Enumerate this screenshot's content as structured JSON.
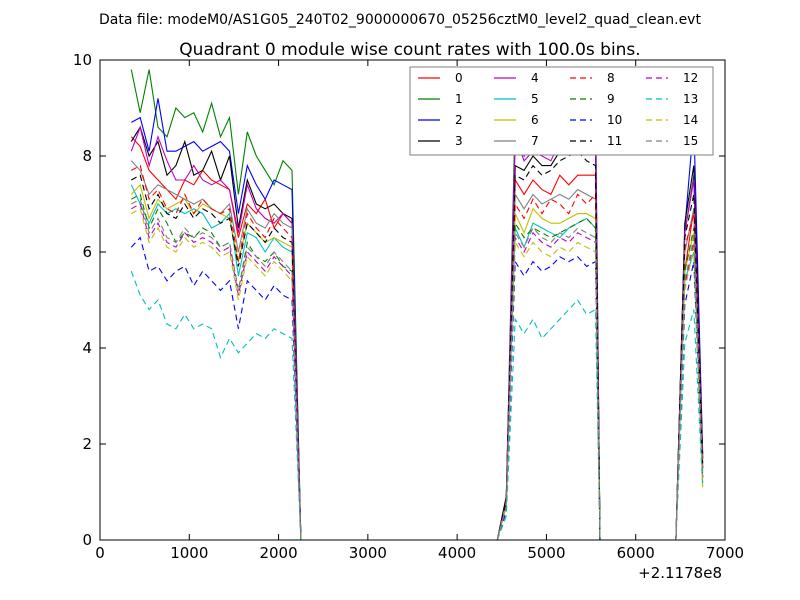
{
  "chart_data": {
    "type": "line",
    "suptitle": "Data file: modeM0/AS1G05_240T02_9000000670_05256cztM0_level2_quad_clean.evt",
    "title": "Quadrant 0 module wise count rates with 100.0s bins.",
    "xlabel": "",
    "ylabel": "",
    "x_offset_label": "+2.1178e8",
    "xlim": [
      0,
      7000
    ],
    "ylim": [
      0,
      10
    ],
    "xticks": [
      "0",
      "1000",
      "2000",
      "3000",
      "4000",
      "5000",
      "6000",
      "7000"
    ],
    "yticks": [
      "0",
      "2",
      "4",
      "6",
      "8",
      "10"
    ],
    "grid": false,
    "legend": {
      "placement": "top-right",
      "columns": 4
    },
    "segments": [
      {
        "start": 350,
        "step": 100,
        "count": 21,
        "tail_x": [
          2410,
          2460
        ]
      },
      {
        "start": 4450,
        "step": 100,
        "count": 12,
        "tail_x": [
          5600,
          5660
        ]
      },
      {
        "start": 6450,
        "step": 100,
        "count": 3,
        "tail_x": [
          6750
        ]
      }
    ],
    "series": [
      {
        "name": "0",
        "color": "#ff0000",
        "dash": "solid",
        "values": [
          [
            8.4,
            8.2,
            7.7,
            7.5,
            7.3,
            7.1,
            7.5,
            7.4,
            7.7,
            7.5,
            7.4,
            7.3,
            6.3,
            7.0,
            6.8,
            7.1,
            6.5,
            6.8,
            6.6,
            0.0,
            0.0
          ],
          [
            0.0,
            0.8,
            7.5,
            7.2,
            7.5,
            7.3,
            7.2,
            7.6,
            7.4,
            7.6,
            7.6,
            7.6,
            0.0,
            0.0
          ],
          [
            0.0,
            5.6,
            6.9,
            1.5,
            0.0
          ]
        ]
      },
      {
        "name": "1",
        "color": "#008000",
        "dash": "solid",
        "values": [
          [
            9.8,
            8.9,
            9.8,
            8.6,
            8.4,
            9.0,
            8.8,
            8.9,
            8.5,
            9.1,
            8.4,
            8.8,
            7.2,
            8.5,
            8.0,
            7.7,
            7.4,
            7.9,
            7.7,
            0.0,
            0.0
          ],
          [
            0.0,
            0.9,
            8.9,
            8.3,
            8.8,
            8.5,
            8.7,
            8.8,
            9.0,
            9.1,
            9.1,
            9.2,
            0.0,
            0.0
          ],
          [
            0.0,
            6.4,
            7.6,
            1.7,
            0.0
          ]
        ]
      },
      {
        "name": "2",
        "color": "#0000ff",
        "dash": "solid",
        "values": [
          [
            8.7,
            8.8,
            8.1,
            9.2,
            8.1,
            8.1,
            8.2,
            8.3,
            8.1,
            8.2,
            8.3,
            8.1,
            6.8,
            7.8,
            7.4,
            7.1,
            7.5,
            7.4,
            7.3,
            0.0,
            0.0
          ],
          [
            0.0,
            0.9,
            8.4,
            8.0,
            8.6,
            8.3,
            8.5,
            8.7,
            8.6,
            8.9,
            8.6,
            8.8,
            0.0,
            0.0
          ],
          [
            0.0,
            6.5,
            8.7,
            1.8,
            0.0
          ]
        ]
      },
      {
        "name": "3",
        "color": "#000000",
        "dash": "solid",
        "values": [
          [
            8.3,
            8.6,
            8.0,
            8.3,
            7.6,
            7.8,
            8.3,
            7.6,
            7.7,
            8.1,
            7.5,
            8.0,
            6.5,
            7.5,
            7.0,
            6.9,
            7.0,
            6.8,
            6.7,
            0.0,
            0.0
          ],
          [
            0.0,
            0.9,
            7.8,
            7.7,
            8.0,
            7.8,
            7.8,
            8.1,
            8.2,
            8.2,
            8.3,
            8.1,
            0.0,
            0.0
          ],
          [
            0.0,
            6.6,
            7.8,
            1.7,
            0.0
          ]
        ]
      },
      {
        "name": "4",
        "color": "#bf00bf",
        "dash": "solid",
        "values": [
          [
            8.1,
            8.6,
            7.8,
            8.4,
            7.9,
            7.5,
            7.5,
            7.8,
            7.5,
            7.4,
            7.5,
            7.3,
            6.4,
            7.4,
            6.9,
            6.7,
            6.6,
            6.8,
            6.6,
            0.0,
            0.0
          ],
          [
            0.0,
            0.8,
            8.4,
            7.9,
            8.1,
            8.0,
            7.9,
            8.3,
            8.5,
            8.6,
            8.4,
            8.4,
            0.0,
            0.0
          ],
          [
            0.0,
            6.4,
            7.5,
            1.6,
            0.0
          ]
        ]
      },
      {
        "name": "5",
        "color": "#00bfbf",
        "dash": "solid",
        "values": [
          [
            7.4,
            7.0,
            6.6,
            7.0,
            6.8,
            6.9,
            6.8,
            6.9,
            6.8,
            6.5,
            6.6,
            6.8,
            5.5,
            6.4,
            6.3,
            6.0,
            6.3,
            6.1,
            6.0,
            0.0,
            0.0
          ],
          [
            0.0,
            0.7,
            6.5,
            6.1,
            6.6,
            6.5,
            6.4,
            6.3,
            6.5,
            6.6,
            6.7,
            6.5,
            0.0,
            0.0
          ],
          [
            0.0,
            5.4,
            6.0,
            1.4,
            0.0
          ]
        ]
      },
      {
        "name": "6",
        "color": "#bfbf00",
        "dash": "solid",
        "values": [
          [
            7.2,
            7.4,
            6.7,
            7.1,
            6.9,
            7.0,
            7.1,
            6.8,
            7.0,
            6.9,
            6.8,
            6.7,
            5.8,
            6.6,
            6.4,
            6.2,
            6.3,
            6.2,
            6.1,
            0.0,
            0.0
          ],
          [
            0.0,
            0.7,
            6.8,
            6.4,
            6.9,
            6.7,
            6.6,
            6.6,
            6.7,
            6.8,
            6.8,
            6.7,
            0.0,
            0.0
          ],
          [
            0.0,
            5.6,
            6.4,
            1.2,
            0.0
          ]
        ]
      },
      {
        "name": "7",
        "color": "#808080",
        "dash": "solid",
        "values": [
          [
            7.9,
            7.7,
            7.2,
            7.4,
            7.3,
            7.2,
            7.1,
            7.0,
            7.1,
            6.9,
            6.8,
            7.0,
            6.0,
            6.9,
            6.6,
            6.5,
            6.8,
            6.6,
            6.5,
            0.0,
            0.0
          ],
          [
            0.0,
            0.8,
            7.2,
            6.9,
            7.2,
            7.0,
            7.1,
            7.2,
            7.1,
            7.3,
            7.2,
            7.1,
            0.0,
            0.0
          ],
          [
            0.0,
            6.0,
            6.9,
            1.5,
            0.0
          ]
        ]
      },
      {
        "name": "8",
        "color": "#ff0000",
        "dash": "dashed",
        "values": [
          [
            7.7,
            7.8,
            7.1,
            7.3,
            6.9,
            6.8,
            7.2,
            6.8,
            7.1,
            6.9,
            6.8,
            6.9,
            5.8,
            6.8,
            6.5,
            6.3,
            6.7,
            6.5,
            6.3,
            0.0,
            0.0
          ],
          [
            0.0,
            0.8,
            7.0,
            6.7,
            7.1,
            6.8,
            7.1,
            7.0,
            6.8,
            7.2,
            7.0,
            7.2,
            0.0,
            0.0
          ],
          [
            0.0,
            6.1,
            6.8,
            1.5,
            0.0
          ]
        ]
      },
      {
        "name": "9",
        "color": "#008000",
        "dash": "dashed",
        "values": [
          [
            7.1,
            7.2,
            6.5,
            6.9,
            6.6,
            6.2,
            6.4,
            6.3,
            6.5,
            6.4,
            6.1,
            6.2,
            5.2,
            6.2,
            5.9,
            5.8,
            6.0,
            5.7,
            5.6,
            0.0,
            0.0
          ],
          [
            0.0,
            0.7,
            6.6,
            6.3,
            6.5,
            6.4,
            6.3,
            6.4,
            6.5,
            6.6,
            6.7,
            6.5,
            0.0,
            0.0
          ],
          [
            0.0,
            5.6,
            6.5,
            1.3,
            0.0
          ]
        ]
      },
      {
        "name": "10",
        "color": "#0000ff",
        "dash": "dashed",
        "values": [
          [
            6.1,
            6.3,
            5.6,
            5.7,
            5.4,
            5.6,
            5.7,
            5.3,
            5.6,
            5.4,
            5.2,
            5.4,
            4.4,
            5.4,
            5.2,
            5.0,
            5.3,
            5.1,
            5.0,
            0.0,
            0.0
          ],
          [
            0.0,
            0.6,
            5.8,
            5.5,
            5.8,
            5.6,
            5.7,
            5.9,
            5.8,
            5.9,
            5.7,
            5.8,
            0.0,
            0.0
          ],
          [
            0.0,
            4.9,
            5.8,
            1.2,
            0.0
          ]
        ]
      },
      {
        "name": "11",
        "color": "#000000",
        "dash": "dashed",
        "values": [
          [
            7.5,
            7.6,
            6.9,
            7.2,
            6.8,
            6.7,
            7.0,
            6.7,
            6.9,
            6.8,
            6.6,
            6.7,
            5.7,
            6.6,
            6.4,
            6.2,
            6.5,
            6.3,
            6.2,
            0.0,
            0.0
          ],
          [
            0.0,
            0.8,
            7.6,
            7.5,
            7.8,
            7.6,
            7.7,
            7.9,
            8.0,
            8.1,
            7.9,
            7.8,
            0.0,
            0.0
          ],
          [
            0.0,
            6.3,
            7.2,
            1.5,
            0.0
          ]
        ]
      },
      {
        "name": "12",
        "color": "#bf00bf",
        "dash": "dashed",
        "values": [
          [
            6.9,
            7.0,
            6.3,
            6.6,
            6.2,
            6.1,
            6.4,
            6.2,
            6.3,
            6.2,
            6.0,
            6.1,
            5.1,
            6.0,
            5.8,
            5.6,
            5.9,
            5.7,
            5.5,
            0.0,
            0.0
          ],
          [
            0.0,
            0.7,
            6.3,
            6.0,
            6.4,
            6.2,
            6.1,
            6.3,
            6.2,
            6.4,
            6.3,
            6.2,
            0.0,
            0.0
          ],
          [
            0.0,
            5.3,
            6.2,
            1.3,
            0.0
          ]
        ]
      },
      {
        "name": "13",
        "color": "#00bfbf",
        "dash": "dashed",
        "values": [
          [
            5.6,
            5.1,
            4.8,
            5.0,
            4.5,
            4.4,
            4.7,
            4.4,
            4.5,
            4.4,
            3.8,
            4.2,
            3.9,
            4.1,
            4.3,
            4.2,
            4.4,
            4.3,
            4.2,
            0.0,
            0.0
          ],
          [
            0.0,
            0.5,
            4.6,
            4.3,
            4.6,
            4.2,
            4.4,
            4.6,
            4.8,
            5.0,
            4.7,
            4.8,
            0.0,
            0.0
          ],
          [
            0.0,
            4.1,
            4.8,
            1.1,
            0.0
          ]
        ]
      },
      {
        "name": "14",
        "color": "#bfbf00",
        "dash": "dashed",
        "values": [
          [
            6.8,
            6.9,
            6.2,
            6.5,
            6.1,
            6.0,
            6.3,
            6.1,
            6.2,
            6.1,
            5.9,
            6.0,
            5.0,
            5.9,
            5.7,
            5.5,
            5.8,
            5.6,
            5.4,
            0.0,
            0.0
          ],
          [
            0.0,
            0.7,
            6.2,
            5.9,
            6.2,
            6.0,
            5.9,
            6.1,
            6.0,
            6.2,
            6.1,
            6.0,
            0.0,
            0.0
          ],
          [
            0.0,
            5.2,
            6.1,
            1.1,
            0.0
          ]
        ]
      },
      {
        "name": "15",
        "color": "#808080",
        "dash": "dashed",
        "values": [
          [
            7.0,
            7.1,
            6.4,
            6.7,
            6.3,
            6.2,
            6.5,
            6.3,
            6.4,
            6.3,
            6.1,
            6.2,
            5.2,
            6.1,
            5.9,
            5.7,
            6.0,
            5.8,
            5.6,
            0.0,
            0.0
          ],
          [
            0.0,
            0.7,
            6.4,
            6.1,
            6.5,
            6.3,
            6.2,
            6.4,
            6.3,
            6.5,
            6.4,
            6.3,
            0.0,
            0.0
          ],
          [
            0.0,
            5.4,
            6.3,
            1.4,
            0.0
          ]
        ]
      }
    ]
  }
}
